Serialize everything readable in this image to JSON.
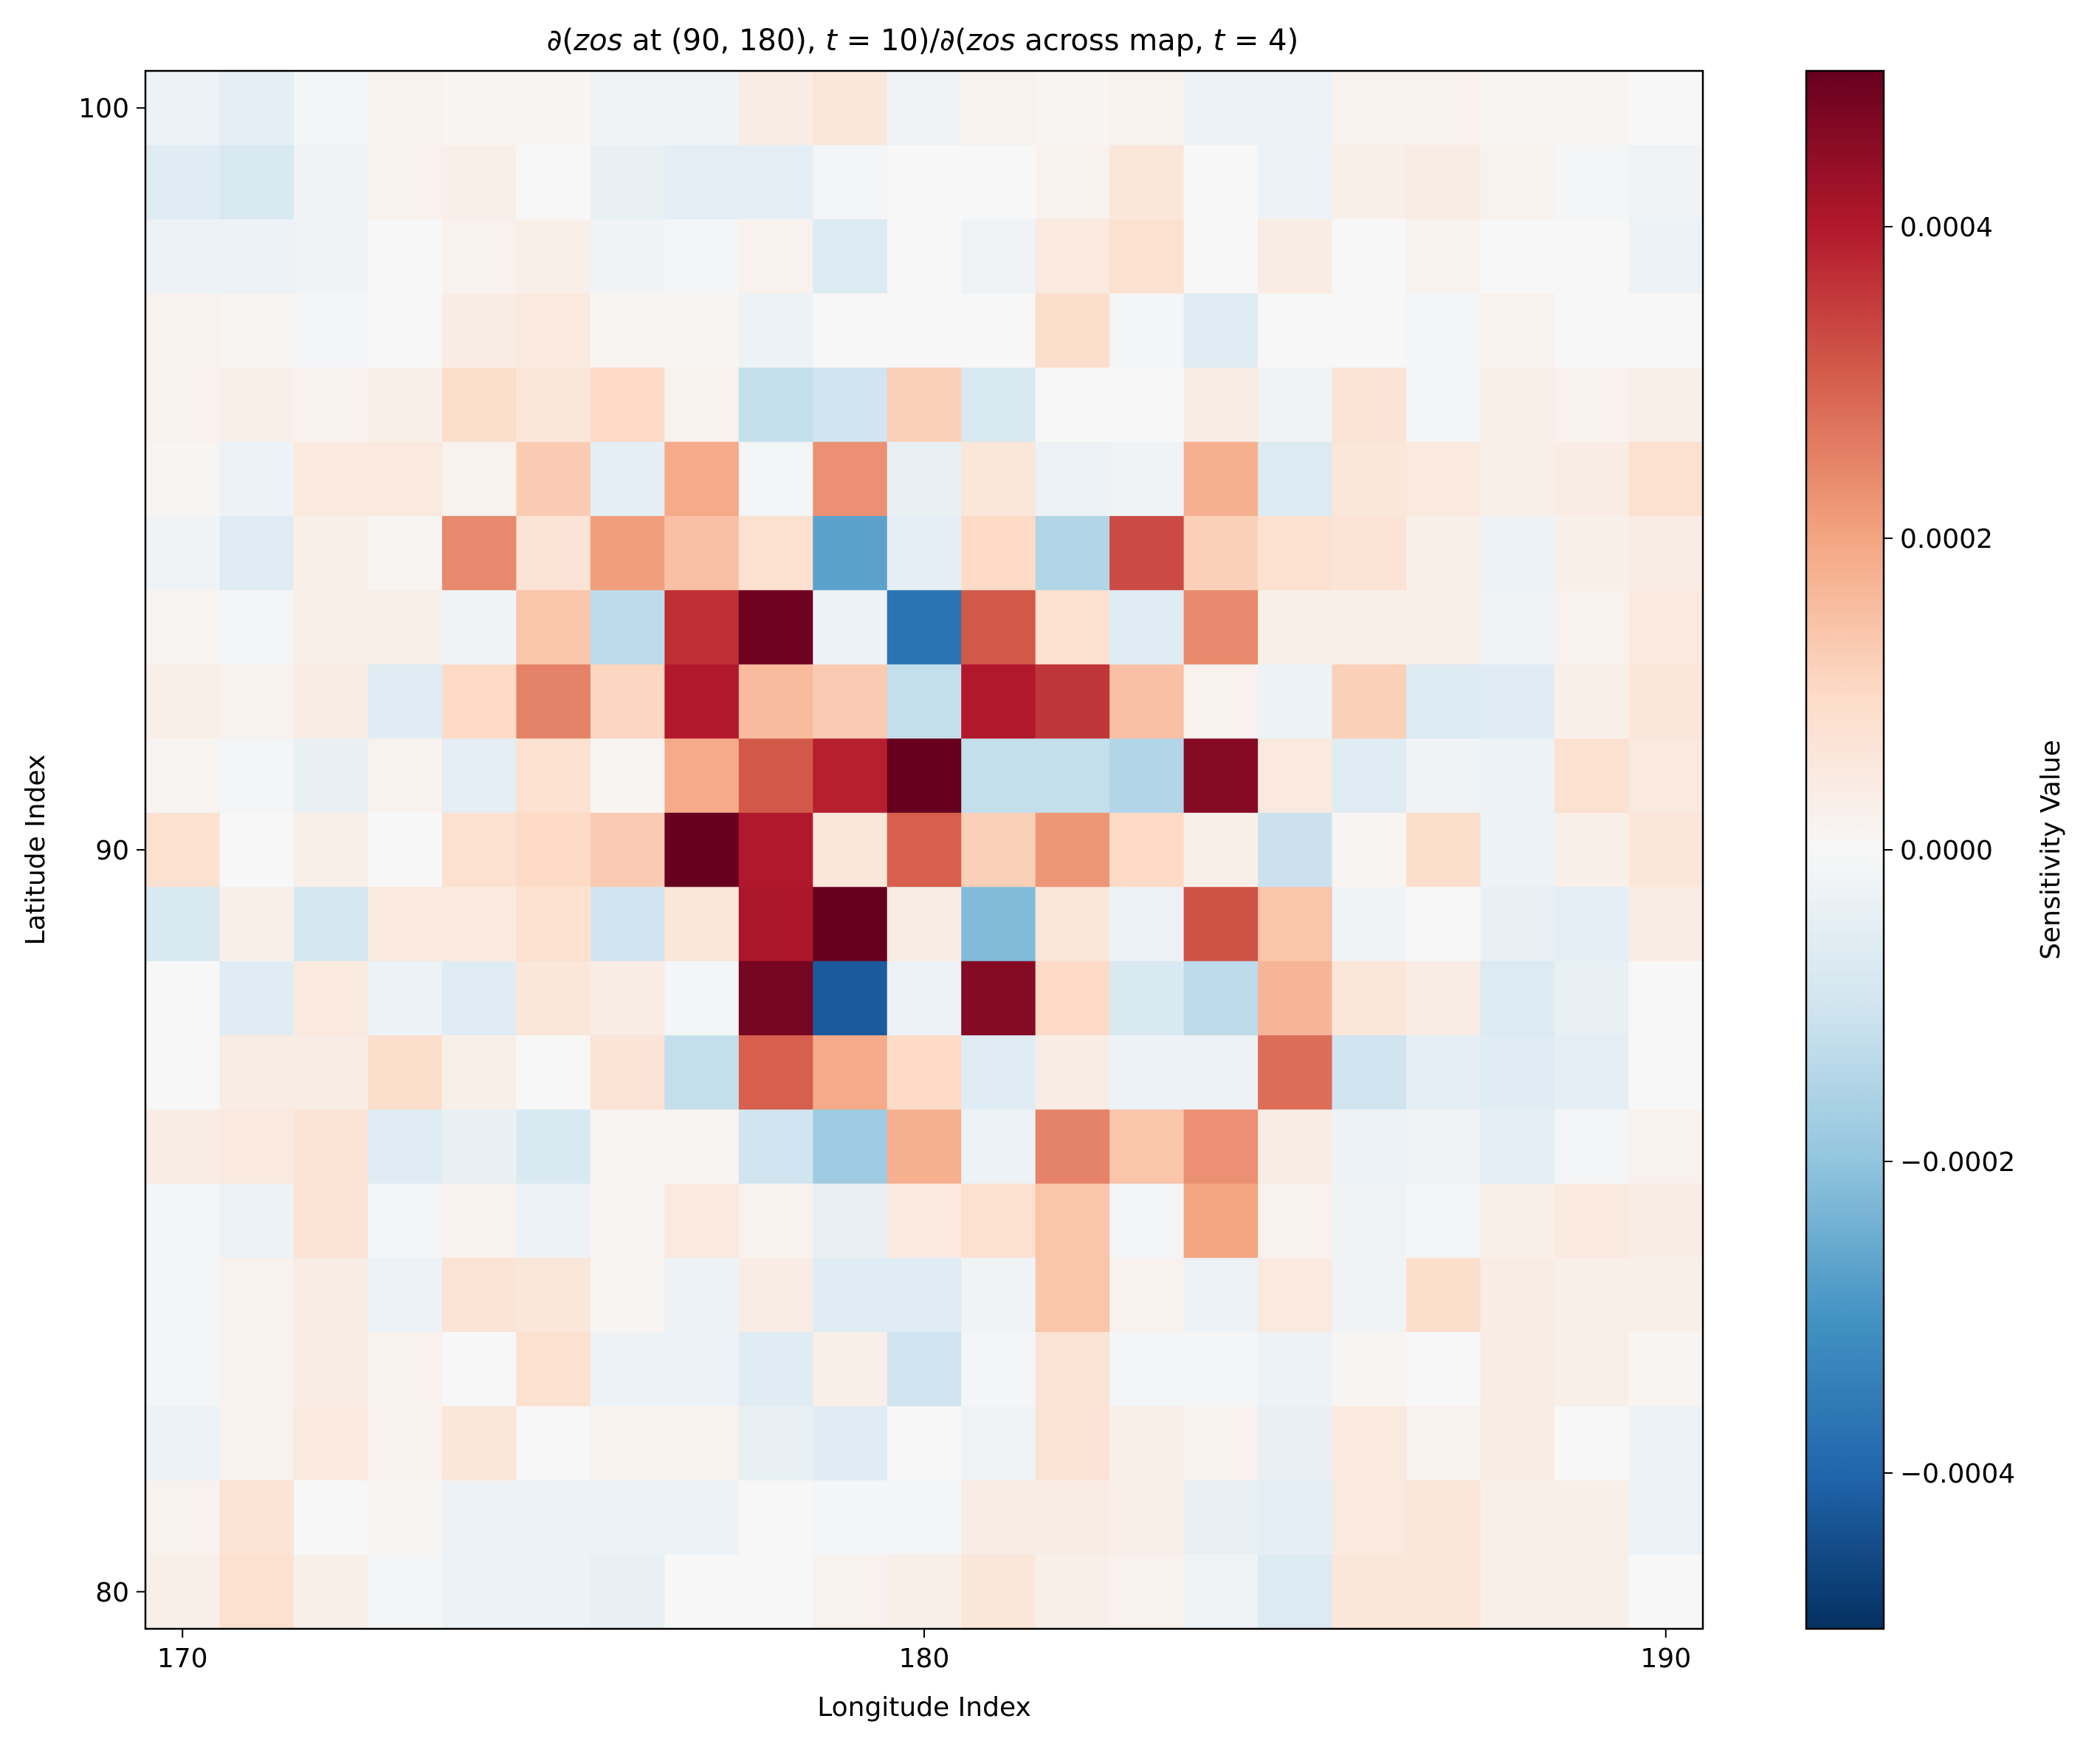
{
  "chart_data": {
    "type": "heatmap",
    "title": "∂(zos at (90, 180), t = 10)/∂(zos across map, t = 4)",
    "title_parts": {
      "p1": "∂(",
      "p2": "zos",
      "p3": " at (90, 180), ",
      "p4": "t",
      "p5": " = 10)/∂(",
      "p6": "zos",
      "p7": " across map, ",
      "p8": "t",
      "p9": " = 4)"
    },
    "xlabel": "Longitude Index",
    "ylabel": "Latitude Index",
    "colorbar_label": "Sensitivity Value",
    "colormap": "RdBu_r",
    "x_range": [
      170,
      190
    ],
    "y_range": [
      80,
      100
    ],
    "x_ticks": [
      170,
      180,
      190
    ],
    "x_tick_labels": [
      "170",
      "180",
      "190"
    ],
    "y_ticks": [
      80,
      90,
      100
    ],
    "y_tick_labels": [
      "80",
      "90",
      "100"
    ],
    "vmin": -0.0005,
    "vmax": 0.0005,
    "colorbar_ticks": [
      -0.0004,
      -0.0002,
      0.0,
      0.0002,
      0.0004
    ],
    "colorbar_tick_labels": [
      "−0.0004",
      "−0.0002",
      "0.0000",
      "0.0002",
      "0.0004"
    ],
    "y_order": "row 0 = latitude 100 (top) down to row 20 = latitude 80 (bottom); column 0 = longitude 170",
    "values": [
      [
        -3e-05,
        -5e-05,
        -1e-05,
        2e-05,
        1e-05,
        1e-05,
        -2e-05,
        -2e-05,
        4e-05,
        6e-05,
        -2e-05,
        2e-05,
        1e-05,
        2e-05,
        -3e-05,
        -3e-05,
        2e-05,
        2e-05,
        1e-05,
        1e-05,
        0.0
      ],
      [
        -6e-05,
        -8e-05,
        -2e-05,
        2e-05,
        3e-05,
        0.0,
        -4e-05,
        -5e-05,
        -5e-05,
        -1e-05,
        0.0,
        0.0,
        2e-05,
        6e-05,
        0.0,
        -3e-05,
        3e-05,
        4e-05,
        2e-05,
        -1e-05,
        -2e-05
      ],
      [
        -3e-05,
        -3e-05,
        -2e-05,
        0.0,
        2e-05,
        3e-05,
        -2e-05,
        -1e-05,
        2e-05,
        -7e-05,
        0.0,
        -2e-05,
        5e-05,
        8e-05,
        0.0,
        4e-05,
        0.0,
        2e-05,
        0.0,
        0.0,
        -3e-05
      ],
      [
        2e-05,
        1e-05,
        -1e-05,
        0.0,
        4e-05,
        5e-05,
        1e-05,
        1e-05,
        -3e-05,
        0.0,
        0.0,
        0.0,
        9e-05,
        -1e-05,
        -6e-05,
        0.0,
        0.0,
        -1e-05,
        2e-05,
        0.0,
        0.0
      ],
      [
        2e-05,
        3e-05,
        2e-05,
        3e-05,
        9e-05,
        6e-05,
        0.0001,
        2e-05,
        -0.00012,
        -0.0001,
        0.00012,
        -8e-05,
        0.0,
        0.0,
        4e-05,
        -2e-05,
        7e-05,
        -1e-05,
        3e-05,
        2e-05,
        3e-05
      ],
      [
        1e-05,
        -3e-05,
        5e-05,
        5e-05,
        2e-05,
        0.00013,
        -5e-05,
        0.00019,
        -1e-05,
        0.00023,
        -4e-05,
        6e-05,
        -3e-05,
        -2e-05,
        0.00018,
        -7e-05,
        6e-05,
        5e-05,
        3e-05,
        4e-05,
        8e-05
      ],
      [
        -2e-05,
        -6e-05,
        3e-05,
        1e-05,
        0.00024,
        7e-05,
        0.00021,
        0.00015,
        8e-05,
        -0.00027,
        -5e-05,
        0.0001,
        -0.00015,
        0.00033,
        0.00012,
        8e-05,
        7e-05,
        3e-05,
        -3e-05,
        3e-05,
        4e-05
      ],
      [
        1e-05,
        -1e-05,
        3e-05,
        3e-05,
        -2e-05,
        0.00014,
        -0.00013,
        0.00037,
        0.00049,
        -3e-05,
        -0.00037,
        0.00031,
        8e-05,
        -6e-05,
        0.00024,
        3e-05,
        3e-05,
        3e-05,
        -2e-05,
        2e-05,
        5e-05
      ],
      [
        3e-05,
        2e-05,
        4e-05,
        -6e-05,
        0.0001,
        0.00025,
        0.00011,
        0.0004,
        0.00016,
        0.00013,
        -0.00012,
        0.0004,
        0.00036,
        0.00015,
        2e-05,
        -3e-05,
        0.00012,
        -7e-05,
        -6e-05,
        3e-05,
        6e-05
      ],
      [
        1e-05,
        -1e-05,
        -4e-05,
        2e-05,
        -5e-05,
        8e-05,
        1e-05,
        0.00019,
        0.00031,
        0.00039,
        0.00052,
        -0.00012,
        -0.00012,
        -0.00015,
        0.00046,
        5e-05,
        -6e-05,
        -2e-05,
        -3e-05,
        8e-05,
        5e-05
      ],
      [
        8e-05,
        0.0,
        3e-05,
        0.0,
        8e-05,
        0.0001,
        0.00013,
        0.0006,
        0.0004,
        6e-05,
        0.0003,
        0.00012,
        0.00022,
        0.0001,
        3e-05,
        -0.00011,
        1e-05,
        9e-05,
        -3e-05,
        3e-05,
        6e-05
      ],
      [
        -8e-05,
        3e-05,
        -9e-05,
        5e-05,
        5e-05,
        8e-05,
        -0.0001,
        6e-05,
        0.00041,
        0.0006,
        4e-05,
        -0.00022,
        6e-05,
        -3e-05,
        0.00032,
        0.00014,
        -2e-05,
        0.0,
        -4e-05,
        -5e-05,
        4e-05
      ],
      [
        0.0,
        -6e-05,
        5e-05,
        -3e-05,
        -6e-05,
        6e-05,
        4e-05,
        -1e-05,
        0.00048,
        -0.00042,
        -3e-05,
        0.00046,
        0.0001,
        -8e-05,
        -0.00013,
        0.00017,
        6e-05,
        4e-05,
        -7e-05,
        -4e-05,
        0.0
      ],
      [
        0.0,
        4e-05,
        4e-05,
        9e-05,
        3e-05,
        0.0,
        7e-05,
        -0.00012,
        0.0003,
        0.00019,
        0.0001,
        -6e-05,
        4e-05,
        -3e-05,
        -3e-05,
        0.00028,
        -0.0001,
        -5e-05,
        -6e-05,
        -5e-05,
        0.0
      ],
      [
        4e-05,
        5e-05,
        7e-05,
        -6e-05,
        -4e-05,
        -8e-05,
        1e-05,
        1e-05,
        -0.0001,
        -0.00018,
        0.00018,
        -3e-05,
        0.00025,
        0.00014,
        0.00023,
        4e-05,
        -3e-05,
        -2e-05,
        -5e-05,
        -1e-05,
        2e-05
      ],
      [
        -1e-05,
        -3e-05,
        7e-05,
        -1e-05,
        2e-05,
        -3e-05,
        1e-05,
        5e-05,
        2e-05,
        -4e-05,
        5e-05,
        8e-05,
        0.00014,
        -1e-05,
        0.0002,
        2e-05,
        -2e-05,
        -1e-05,
        3e-05,
        5e-05,
        4e-05
      ],
      [
        -1e-05,
        2e-05,
        4e-05,
        -3e-05,
        7e-05,
        6e-05,
        1e-05,
        -3e-05,
        4e-05,
        -6e-05,
        -6e-05,
        -2e-05,
        0.00014,
        2e-05,
        -3e-05,
        5e-05,
        -2e-05,
        9e-05,
        4e-05,
        3e-05,
        3e-05
      ],
      [
        -1e-05,
        2e-05,
        4e-05,
        2e-05,
        0.0,
        8e-05,
        -3e-05,
        -3e-05,
        -6e-05,
        3e-05,
        -0.0001,
        -1e-05,
        7e-05,
        -1e-05,
        -1e-05,
        -3e-05,
        1e-05,
        0.0,
        4e-05,
        3e-05,
        1e-05
      ],
      [
        -3e-05,
        2e-05,
        5e-05,
        2e-05,
        6e-05,
        0.0,
        2e-05,
        2e-05,
        -4e-05,
        -6e-05,
        0.0,
        -2e-05,
        7e-05,
        3e-05,
        2e-05,
        -4e-05,
        5e-05,
        2e-05,
        4e-05,
        0.0,
        -3e-05
      ],
      [
        2e-05,
        7e-05,
        0.0,
        1e-05,
        -3e-05,
        -3e-05,
        -3e-05,
        -3e-05,
        0.0,
        -1e-05,
        -1e-05,
        4e-05,
        4e-05,
        3e-05,
        -4e-05,
        -5e-05,
        5e-05,
        6e-05,
        3e-05,
        3e-05,
        -3e-05
      ],
      [
        3e-05,
        8e-05,
        3e-05,
        -1e-05,
        -3e-05,
        -3e-05,
        -4e-05,
        0.0,
        0.0,
        2e-05,
        3e-05,
        6e-05,
        3e-05,
        2e-05,
        -2e-05,
        -7e-05,
        6e-05,
        6e-05,
        3e-05,
        3e-05,
        0.0
      ]
    ]
  }
}
